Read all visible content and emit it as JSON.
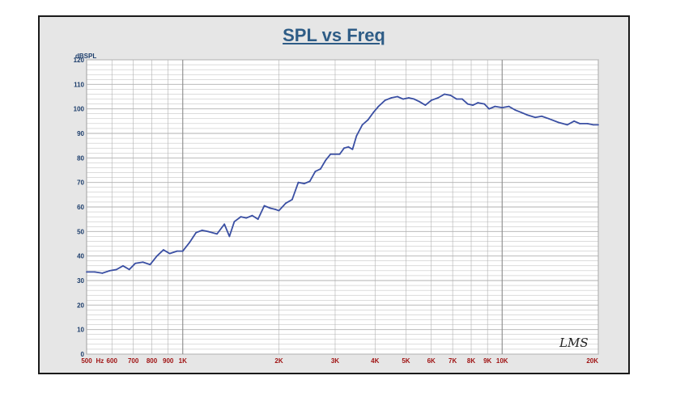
{
  "chart_data": {
    "type": "line",
    "title": "SPL vs Freq",
    "ylabel": "dBSPL",
    "xlabel": "",
    "x_scale": "log",
    "xlim": [
      500,
      20000
    ],
    "ylim": [
      0,
      120
    ],
    "grid": true,
    "y_ticks": [
      0,
      10,
      20,
      30,
      40,
      50,
      60,
      70,
      80,
      90,
      100,
      110,
      120
    ],
    "x_ticks": [
      {
        "value": 500,
        "label": "500"
      },
      {
        "value": 550,
        "label": "Hz"
      },
      {
        "value": 600,
        "label": "600"
      },
      {
        "value": 700,
        "label": "700"
      },
      {
        "value": 800,
        "label": "800"
      },
      {
        "value": 900,
        "label": "900"
      },
      {
        "value": 1000,
        "label": "1K"
      },
      {
        "value": 2000,
        "label": "2K"
      },
      {
        "value": 3000,
        "label": "3K"
      },
      {
        "value": 4000,
        "label": "4K"
      },
      {
        "value": 5000,
        "label": "5K"
      },
      {
        "value": 6000,
        "label": "6K"
      },
      {
        "value": 7000,
        "label": "7K"
      },
      {
        "value": 8000,
        "label": "8K"
      },
      {
        "value": 9000,
        "label": "9K"
      },
      {
        "value": 10000,
        "label": "10K"
      },
      {
        "value": 20000,
        "label": "20K"
      }
    ],
    "series": [
      {
        "color": "#3a4fa3",
        "x": [
          500,
          530,
          560,
          590,
          620,
          650,
          680,
          710,
          750,
          790,
          830,
          870,
          910,
          960,
          1000,
          1050,
          1100,
          1150,
          1200,
          1280,
          1350,
          1400,
          1450,
          1520,
          1580,
          1650,
          1720,
          1800,
          1880,
          1950,
          2000,
          2100,
          2200,
          2300,
          2400,
          2500,
          2600,
          2700,
          2800,
          2900,
          3000,
          3100,
          3200,
          3300,
          3400,
          3500,
          3650,
          3800,
          3950,
          4100,
          4300,
          4500,
          4700,
          4900,
          5100,
          5300,
          5500,
          5750,
          6000,
          6300,
          6600,
          6900,
          7200,
          7500,
          7800,
          8100,
          8400,
          8800,
          9100,
          9500,
          10000,
          10500,
          11000,
          11500,
          12000,
          12700,
          13300,
          14000,
          15000,
          16000,
          16800,
          17500,
          18500,
          19300,
          20000
        ],
        "y": [
          33.5,
          33.5,
          33,
          34,
          34.5,
          36,
          34.5,
          37,
          37.5,
          36.5,
          40,
          42.5,
          41,
          42,
          42,
          45.5,
          49.5,
          50.5,
          50,
          49,
          53,
          48,
          54,
          56,
          55.5,
          56.5,
          55,
          60.5,
          59.5,
          59,
          58.5,
          61.5,
          63,
          70,
          69.5,
          70.5,
          74.5,
          75.5,
          79,
          81.5,
          81.5,
          81.5,
          84,
          84.5,
          83.5,
          89,
          93.5,
          95.5,
          98.5,
          101,
          103.5,
          104.5,
          105,
          104,
          104.5,
          104,
          103,
          101.5,
          103.5,
          104.5,
          106,
          105.5,
          104,
          104,
          102,
          101.5,
          102.5,
          102,
          100,
          101,
          100.5,
          101,
          99.5,
          98.5,
          97.5,
          96.5,
          97,
          96,
          94.5,
          93.5,
          95,
          94,
          94,
          93.5,
          93.5
        ]
      }
    ]
  },
  "logo": "LMS",
  "colors": {
    "frame_bg": "#e6e6e6",
    "plot_bg": "#ffffff",
    "grid": "#b0b0b0",
    "title": "#2e5c86",
    "y_tick": "#1c3d6b",
    "x_tick": "#a01414",
    "line": "#3a4fa3"
  }
}
